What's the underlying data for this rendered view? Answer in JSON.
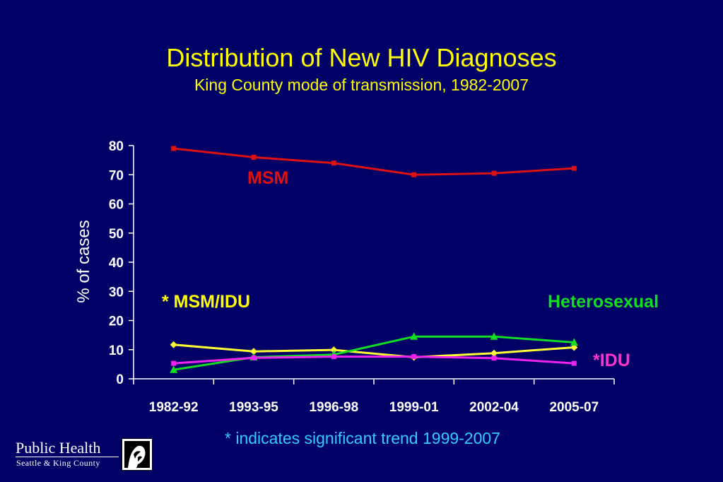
{
  "chart_data": {
    "type": "line",
    "title": "Distribution of New HIV Diagnoses",
    "subtitle": "King County mode of transmission, 1982-2007",
    "xlabel": "",
    "ylabel": "% of cases",
    "categories": [
      "1982-92",
      "1993-95",
      "1996-98",
      "1999-01",
      "2002-04",
      "2005-07"
    ],
    "ylim": [
      0,
      80
    ],
    "yticks": [
      0,
      10,
      20,
      30,
      40,
      50,
      60,
      70,
      80
    ],
    "grid": false,
    "legend": "inline labels",
    "series": [
      {
        "name": "MSM",
        "color": "#dd1111",
        "marker": "square",
        "values": [
          79,
          76,
          74,
          70,
          70.5,
          72.2
        ]
      },
      {
        "name": "* MSM/IDU",
        "color": "#ffff33",
        "marker": "diamond",
        "values": [
          11.7,
          9.4,
          9.9,
          7.4,
          8.8,
          10.8
        ]
      },
      {
        "name": "Heterosexual",
        "color": "#11dd22",
        "marker": "triangle",
        "values": [
          3.1,
          7.4,
          8.3,
          14.5,
          14.5,
          12.5
        ]
      },
      {
        "name": "*IDU",
        "color": "#ee22ee",
        "marker": "square",
        "values": [
          5.3,
          7.2,
          7.6,
          7.6,
          7.1,
          5.3
        ]
      }
    ],
    "series_label_colors": [
      "#dd1111",
      "#ffff00",
      "#11dd22",
      "#ff33cc"
    ],
    "footnote": "* indicates significant trend 1999-2007"
  },
  "logo": {
    "line1": "Public Health",
    "line2": "Seattle & King County",
    "icon": "portrait-logo-icon"
  },
  "colors": {
    "background": "#000066",
    "title": "#ffff00",
    "footnote": "#33ccff",
    "axis": "#ffffff"
  }
}
